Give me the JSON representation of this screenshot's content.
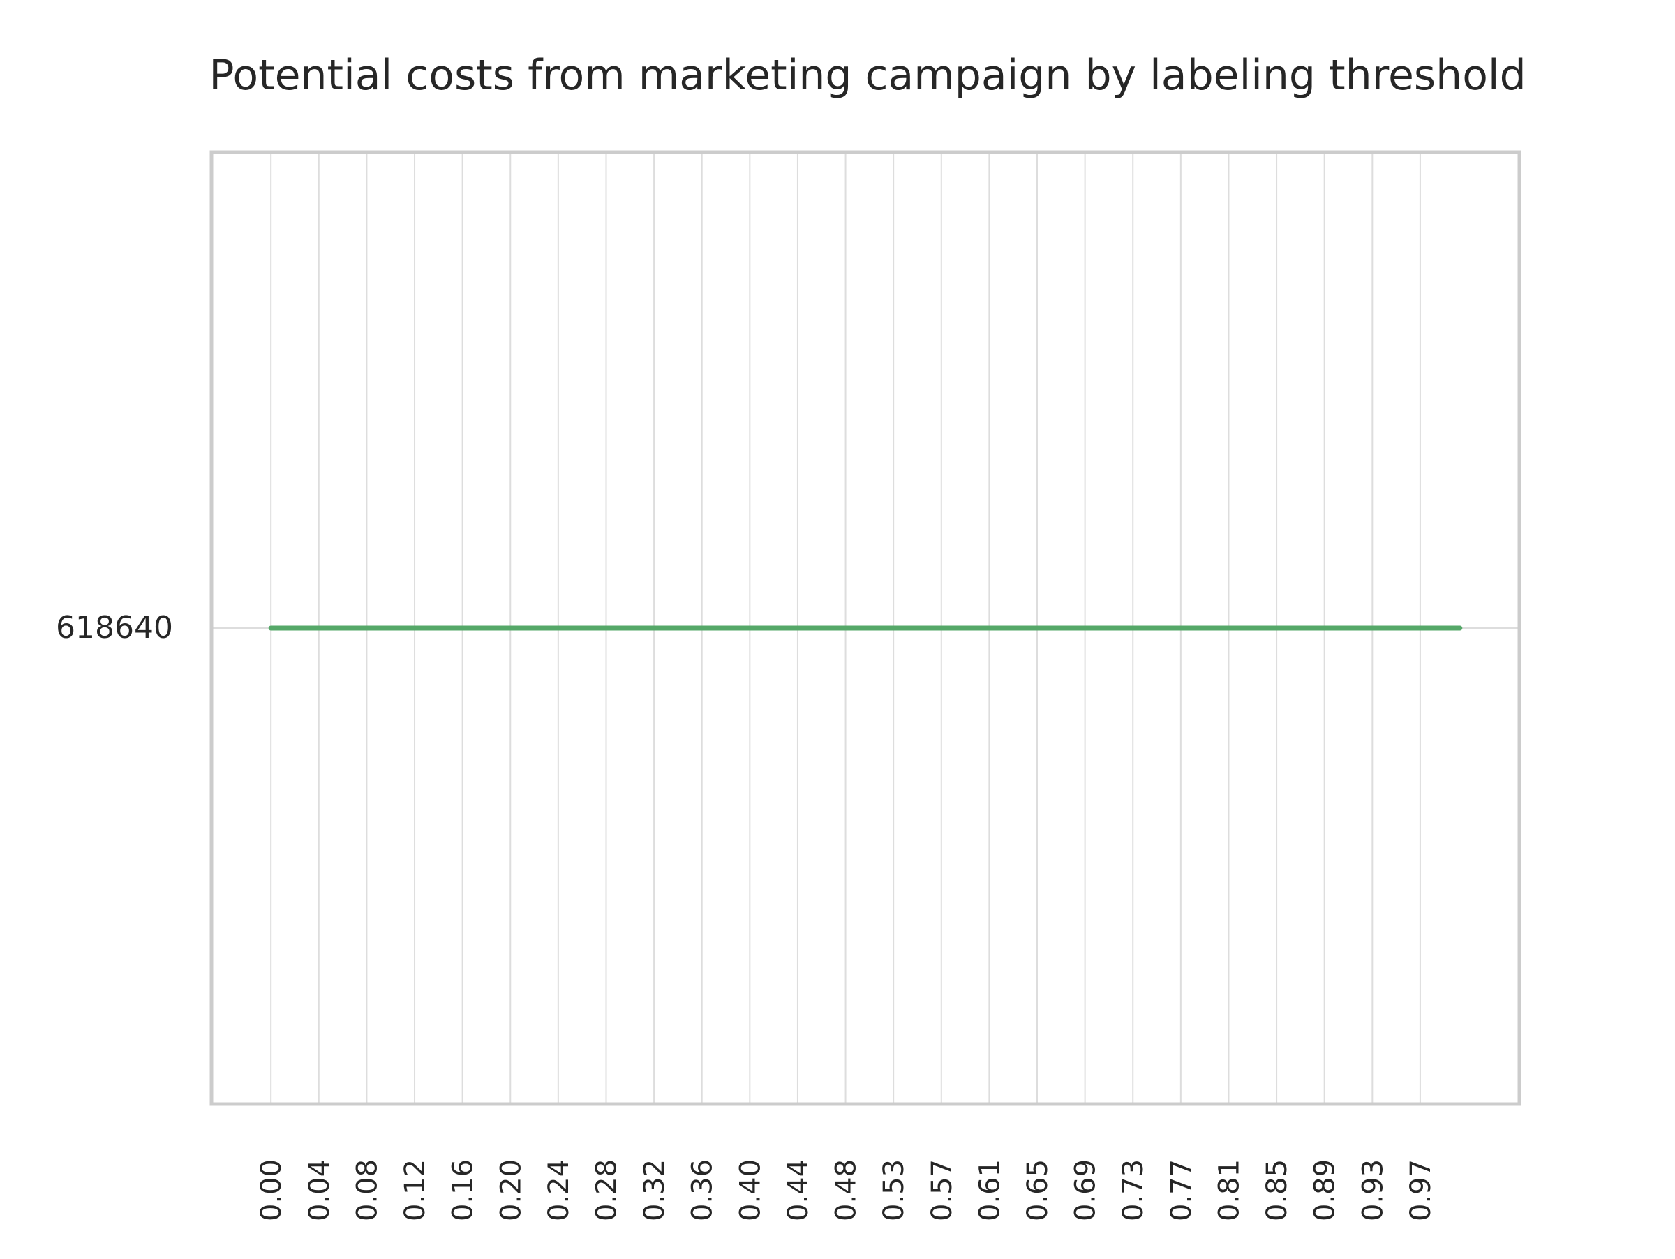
{
  "chart_data": {
    "type": "line",
    "title": "Potential costs from marketing campaign by labeling threshold",
    "xlabel": "",
    "ylabel": "",
    "x_tick_labels": [
      "0.00",
      "0.04",
      "0.08",
      "0.12",
      "0.16",
      "0.20",
      "0.24",
      "0.28",
      "0.32",
      "0.36",
      "0.40",
      "0.44",
      "0.48",
      "0.53",
      "0.57",
      "0.61",
      "0.65",
      "0.69",
      "0.73",
      "0.77",
      "0.81",
      "0.85",
      "0.89",
      "0.93",
      "0.97"
    ],
    "y_tick_labels": [
      "618640"
    ],
    "xlim": [
      -0.05,
      1.05
    ],
    "ylim": [
      618639.95,
      618640.05
    ],
    "grid": true,
    "legend": "none",
    "colors": {
      "line": "#55a868",
      "grid": "#dddddd",
      "frame": "#cccccc",
      "text": "#262626"
    },
    "series": [
      {
        "x": [
          0.0,
          1.0
        ],
        "y": [
          618640,
          618640
        ]
      }
    ]
  }
}
